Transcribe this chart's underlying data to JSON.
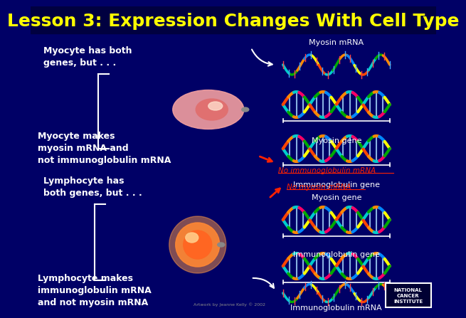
{
  "title": "Lesson 3: Expression Changes With Cell Type",
  "title_color": "#FFFF00",
  "title_fontsize": 18,
  "bg_color": "#000066",
  "text_white": "#FFFFFF",
  "text_red": "#FF2200",
  "myocyte_top_text": "Myocyte has both\ngenes, but . . .",
  "myocyte_bottom_text": "Myocyte makes\nmyosin mRNA and\nnot immunoglobulin mRNA",
  "lymphocyte_top_text": "Lymphocyte has\nboth genes, but . . .",
  "lymphocyte_bottom_text": "Lymphocyte makes\nimmunoglobulin mRNA\nand not myosin mRNA",
  "myosin_mrna_label": "Myosin mRNA",
  "myosin_gene_label": "Myosin gene",
  "immunoglobulin_gene_label": "Immunoglobulin gene",
  "no_immunoglobulin_label": "No immunoglobulin mRNA",
  "no_myosin_label": "No myosin mRNA",
  "immunoglobulin_mrna_label": "Immunoglobulin mRNA",
  "nci_text": "NATIONAL\nCANCER\nINSTITUTE",
  "attribution": "Artwork by Jeanne Kelly © 2002"
}
